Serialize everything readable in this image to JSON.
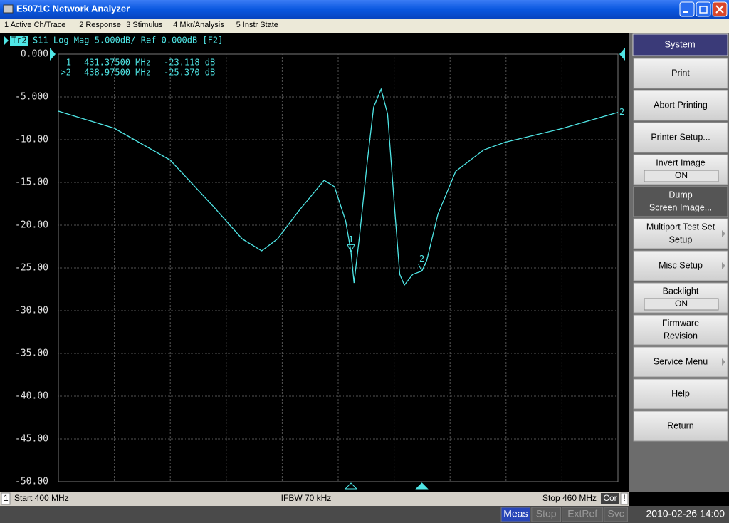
{
  "window": {
    "title": "E5071C Network Analyzer"
  },
  "menu": [
    "1 Active Ch/Trace",
    "2 Response",
    "3 Stimulus",
    "4 Mkr/Analysis",
    "5 Instr State"
  ],
  "chart_data": {
    "type": "line",
    "trace_label": "Tr2",
    "title": "S11 Log Mag 5.000dB/ Ref 0.000dB [F2]",
    "x": [
      400,
      406,
      412,
      416.6,
      419.7,
      421.8,
      423.5,
      425.8,
      428.5,
      429.6,
      430.8,
      431.375,
      431.7,
      432.3,
      433.1,
      433.8,
      434.6,
      435.3,
      436.1,
      436.6,
      437.1,
      438.0,
      438.975,
      439.5,
      440.7,
      442.6,
      445.6,
      447.9,
      454.0,
      460
    ],
    "series": [
      {
        "name": "2",
        "color": "#4fe6e6",
        "values": [
          -6.67,
          -8.67,
          -12.4,
          -17.8,
          -21.6,
          -23.0,
          -21.6,
          -18.3,
          -14.75,
          -15.5,
          -19.5,
          -23.118,
          -26.75,
          -21.2,
          -12.8,
          -6.2,
          -4.1,
          -7.0,
          -18.7,
          -25.75,
          -27.0,
          -25.75,
          -25.37,
          -24.1,
          -18.7,
          -13.7,
          -11.2,
          -10.3,
          -8.7,
          -6.8
        ]
      }
    ],
    "xlim": [
      400,
      460
    ],
    "ylim": [
      -50,
      0
    ],
    "yticks": [
      {
        "value": 0,
        "label": "0.000"
      },
      {
        "value": -5,
        "label": "-5.000"
      },
      {
        "value": -10,
        "label": "-10.00"
      },
      {
        "value": -15,
        "label": "-15.00"
      },
      {
        "value": -20,
        "label": "-20.00"
      },
      {
        "value": -25,
        "label": "-25.00"
      },
      {
        "value": -30,
        "label": "-30.00"
      },
      {
        "value": -35,
        "label": "-35.00"
      },
      {
        "value": -40,
        "label": "-40.00"
      },
      {
        "value": -45,
        "label": "-45.00"
      },
      {
        "value": -50,
        "label": "-50.00"
      }
    ],
    "grid": true,
    "markers": [
      {
        "name": "1",
        "readout_name": "1",
        "x": 431.375,
        "y": -23.118,
        "x_label": "431.37500 MHz",
        "y_label": "-23.118 dB",
        "active": false
      },
      {
        "name": "2",
        "readout_name": ">2",
        "x": 438.975,
        "y": -25.37,
        "x_label": "438.97500 MHz",
        "y_label": "-25.370 dB",
        "active": true
      }
    ]
  },
  "status": {
    "channel": "1",
    "start": "Start 400 MHz",
    "ifbw": "IFBW 70 kHz",
    "stop": "Stop 460 MHz",
    "cor": "Cor",
    "warn": "!"
  },
  "softkeys": {
    "header": "System",
    "keys": [
      {
        "lines": [
          "Print"
        ]
      },
      {
        "lines": [
          "Abort Printing"
        ]
      },
      {
        "lines": [
          "Printer Setup..."
        ]
      },
      {
        "lines": [
          "Invert Image"
        ],
        "value": "ON"
      },
      {
        "lines": [
          "Dump",
          "Screen Image..."
        ],
        "selected": true
      },
      {
        "lines": [
          "Multiport Test Set",
          "Setup"
        ],
        "arrow": true
      },
      {
        "lines": [
          "Misc Setup"
        ],
        "arrow": true
      },
      {
        "lines": [
          "Backlight"
        ],
        "value": "ON"
      },
      {
        "lines": [
          "Firmware",
          "Revision"
        ]
      },
      {
        "lines": [
          "Service Menu"
        ],
        "arrow": true
      },
      {
        "lines": [
          "Help"
        ]
      },
      {
        "lines": [
          "Return"
        ]
      }
    ]
  },
  "bottom_bar": {
    "items": [
      "Meas",
      "Stop",
      "ExtRef",
      "Svc"
    ],
    "datetime": "2010-02-26 14:00"
  }
}
